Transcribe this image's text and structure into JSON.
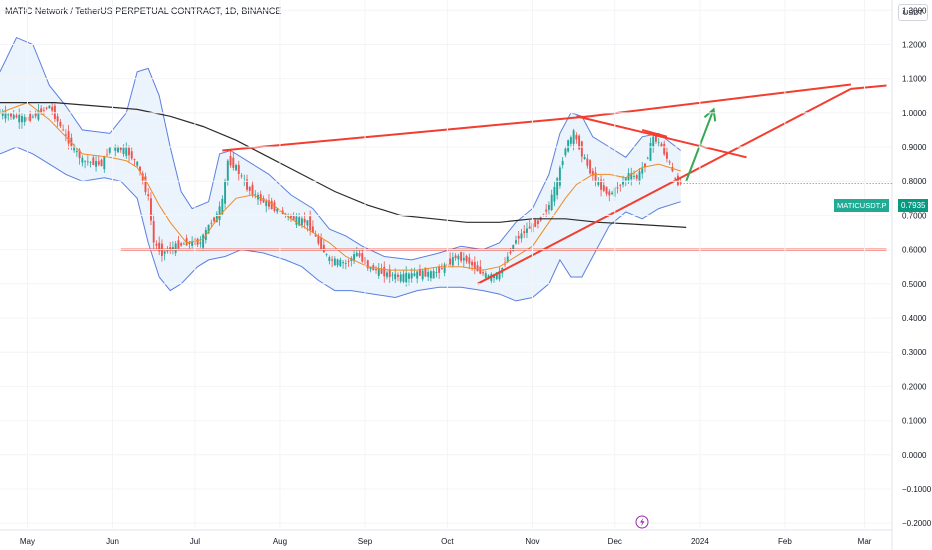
{
  "header": {
    "title": "MATIC Network / TetherUS PERPETUAL CONTRACT, 1D, BINANCE",
    "unit": "USDT"
  },
  "price_marker": {
    "symbol": "MATICUSDT.P",
    "value": "0.7935"
  },
  "colors": {
    "up": "#26a69a",
    "down": "#ef5350",
    "band": "#5b7fe0",
    "band_fill": "#e3f0fb",
    "sma": "#f08a24",
    "long_ma": "#2b2b2b",
    "pattern": "#f23d2f",
    "arrow": "#34a853"
  },
  "chart_data": {
    "type": "candlestick",
    "title": "MATIC Network / TetherUS PERPETUAL CONTRACT, 1D, BINANCE",
    "x_ticks": [
      "May",
      "Jun",
      "Jul",
      "Aug",
      "Sep",
      "Oct",
      "Nov",
      "Dec",
      "2024",
      "Feb",
      "Mar"
    ],
    "y_ticks": [
      "1.3000",
      "1.2000",
      "1.1000",
      "1.0000",
      "0.9000",
      "0.8000",
      "0.7000",
      "0.6000",
      "0.5000",
      "0.4000",
      "0.3000",
      "0.2000",
      "0.1000",
      "0.0000",
      "−0.1000",
      "−0.2000"
    ],
    "ylim": [
      -0.22,
      1.33
    ],
    "x_range_days": [
      -10,
      315
    ],
    "last_price": 0.7935,
    "price_path": [
      [
        -10,
        1.0
      ],
      [
        0,
        0.98
      ],
      [
        8,
        1.02
      ],
      [
        14,
        0.93
      ],
      [
        20,
        0.86
      ],
      [
        27,
        0.85
      ],
      [
        30,
        0.9
      ],
      [
        36,
        0.89
      ],
      [
        40,
        0.85
      ],
      [
        44,
        0.75
      ],
      [
        46,
        0.62
      ],
      [
        49,
        0.59
      ],
      [
        54,
        0.61
      ],
      [
        58,
        0.62
      ],
      [
        63,
        0.62
      ],
      [
        66,
        0.67
      ],
      [
        69,
        0.7
      ],
      [
        71,
        0.74
      ],
      [
        73,
        0.86
      ],
      [
        76,
        0.84
      ],
      [
        80,
        0.78
      ],
      [
        86,
        0.74
      ],
      [
        92,
        0.71
      ],
      [
        97,
        0.69
      ],
      [
        102,
        0.68
      ],
      [
        106,
        0.62
      ],
      [
        110,
        0.57
      ],
      [
        116,
        0.56
      ],
      [
        120,
        0.59
      ],
      [
        124,
        0.55
      ],
      [
        130,
        0.53
      ],
      [
        136,
        0.52
      ],
      [
        142,
        0.53
      ],
      [
        148,
        0.53
      ],
      [
        152,
        0.55
      ],
      [
        156,
        0.58
      ],
      [
        160,
        0.57
      ],
      [
        164,
        0.54
      ],
      [
        168,
        0.52
      ],
      [
        172,
        0.53
      ],
      [
        175,
        0.58
      ],
      [
        178,
        0.63
      ],
      [
        182,
        0.66
      ],
      [
        186,
        0.68
      ],
      [
        190,
        0.73
      ],
      [
        193,
        0.8
      ],
      [
        196,
        0.9
      ],
      [
        199,
        0.94
      ],
      [
        202,
        0.88
      ],
      [
        205,
        0.83
      ],
      [
        208,
        0.79
      ],
      [
        212,
        0.76
      ],
      [
        216,
        0.79
      ],
      [
        219,
        0.82
      ],
      [
        222,
        0.81
      ],
      [
        225,
        0.85
      ],
      [
        228,
        0.93
      ],
      [
        231,
        0.9
      ],
      [
        234,
        0.85
      ],
      [
        236,
        0.8
      ],
      [
        238,
        0.7935
      ]
    ],
    "bollinger_upper": [
      [
        -10,
        1.12
      ],
      [
        -4,
        1.22
      ],
      [
        2,
        1.2
      ],
      [
        8,
        1.08
      ],
      [
        14,
        1.02
      ],
      [
        20,
        0.95
      ],
      [
        30,
        0.94
      ],
      [
        36,
        1.0
      ],
      [
        40,
        1.12
      ],
      [
        44,
        1.13
      ],
      [
        48,
        1.05
      ],
      [
        52,
        0.9
      ],
      [
        56,
        0.77
      ],
      [
        60,
        0.72
      ],
      [
        66,
        0.74
      ],
      [
        70,
        0.88
      ],
      [
        74,
        0.89
      ],
      [
        80,
        0.86
      ],
      [
        88,
        0.82
      ],
      [
        96,
        0.76
      ],
      [
        104,
        0.72
      ],
      [
        110,
        0.66
      ],
      [
        116,
        0.64
      ],
      [
        122,
        0.61
      ],
      [
        130,
        0.58
      ],
      [
        140,
        0.57
      ],
      [
        150,
        0.59
      ],
      [
        158,
        0.61
      ],
      [
        166,
        0.6
      ],
      [
        172,
        0.62
      ],
      [
        178,
        0.68
      ],
      [
        184,
        0.72
      ],
      [
        190,
        0.82
      ],
      [
        194,
        0.94
      ],
      [
        198,
        1.0
      ],
      [
        202,
        0.99
      ],
      [
        206,
        0.93
      ],
      [
        212,
        0.9
      ],
      [
        218,
        0.87
      ],
      [
        224,
        0.93
      ],
      [
        230,
        0.94
      ],
      [
        238,
        0.89
      ]
    ],
    "bollinger_lower": [
      [
        -10,
        0.88
      ],
      [
        -4,
        0.9
      ],
      [
        2,
        0.88
      ],
      [
        8,
        0.85
      ],
      [
        14,
        0.82
      ],
      [
        20,
        0.8
      ],
      [
        28,
        0.81
      ],
      [
        34,
        0.8
      ],
      [
        40,
        0.75
      ],
      [
        44,
        0.62
      ],
      [
        48,
        0.52
      ],
      [
        52,
        0.48
      ],
      [
        56,
        0.5
      ],
      [
        62,
        0.55
      ],
      [
        66,
        0.57
      ],
      [
        72,
        0.58
      ],
      [
        78,
        0.6
      ],
      [
        86,
        0.59
      ],
      [
        94,
        0.57
      ],
      [
        100,
        0.55
      ],
      [
        106,
        0.51
      ],
      [
        112,
        0.48
      ],
      [
        118,
        0.48
      ],
      [
        126,
        0.47
      ],
      [
        134,
        0.46
      ],
      [
        142,
        0.48
      ],
      [
        150,
        0.49
      ],
      [
        158,
        0.49
      ],
      [
        166,
        0.48
      ],
      [
        172,
        0.47
      ],
      [
        178,
        0.45
      ],
      [
        184,
        0.46
      ],
      [
        190,
        0.5
      ],
      [
        194,
        0.57
      ],
      [
        198,
        0.52
      ],
      [
        202,
        0.52
      ],
      [
        206,
        0.58
      ],
      [
        212,
        0.67
      ],
      [
        218,
        0.71
      ],
      [
        224,
        0.69
      ],
      [
        230,
        0.72
      ],
      [
        238,
        0.74
      ]
    ],
    "sma_orange": [
      [
        -10,
        1.0
      ],
      [
        0,
        1.03
      ],
      [
        8,
        0.98
      ],
      [
        14,
        0.93
      ],
      [
        20,
        0.88
      ],
      [
        30,
        0.87
      ],
      [
        36,
        0.86
      ],
      [
        40,
        0.84
      ],
      [
        44,
        0.79
      ],
      [
        48,
        0.73
      ],
      [
        52,
        0.68
      ],
      [
        58,
        0.62
      ],
      [
        64,
        0.63
      ],
      [
        70,
        0.7
      ],
      [
        76,
        0.75
      ],
      [
        82,
        0.76
      ],
      [
        88,
        0.74
      ],
      [
        96,
        0.69
      ],
      [
        104,
        0.65
      ],
      [
        110,
        0.62
      ],
      [
        116,
        0.58
      ],
      [
        124,
        0.55
      ],
      [
        132,
        0.54
      ],
      [
        142,
        0.54
      ],
      [
        150,
        0.55
      ],
      [
        158,
        0.55
      ],
      [
        166,
        0.54
      ],
      [
        172,
        0.55
      ],
      [
        178,
        0.58
      ],
      [
        184,
        0.61
      ],
      [
        190,
        0.68
      ],
      [
        196,
        0.75
      ],
      [
        200,
        0.79
      ],
      [
        206,
        0.82
      ],
      [
        212,
        0.82
      ],
      [
        218,
        0.81
      ],
      [
        224,
        0.84
      ],
      [
        230,
        0.85
      ],
      [
        238,
        0.83
      ]
    ],
    "long_ma": [
      [
        -10,
        1.03
      ],
      [
        10,
        1.03
      ],
      [
        25,
        1.02
      ],
      [
        40,
        1.01
      ],
      [
        52,
        0.99
      ],
      [
        64,
        0.96
      ],
      [
        76,
        0.92
      ],
      [
        88,
        0.87
      ],
      [
        100,
        0.82
      ],
      [
        112,
        0.77
      ],
      [
        124,
        0.73
      ],
      [
        136,
        0.7
      ],
      [
        148,
        0.69
      ],
      [
        160,
        0.68
      ],
      [
        172,
        0.68
      ],
      [
        184,
        0.69
      ],
      [
        196,
        0.69
      ],
      [
        208,
        0.68
      ],
      [
        220,
        0.675
      ],
      [
        240,
        0.665
      ]
    ],
    "annotations": [
      {
        "type": "line",
        "from": [
          71,
          0.89
        ],
        "to": [
          205,
          0.99
        ]
      },
      {
        "type": "line",
        "from": [
          205,
          0.99
        ],
        "to": [
          300,
          1.083
        ]
      },
      {
        "type": "line",
        "from": [
          200,
          0.99
        ],
        "to": [
          262,
          0.87
        ]
      },
      {
        "type": "line",
        "from": [
          164,
          0.5
        ],
        "to": [
          300,
          1.07
        ]
      },
      {
        "type": "line",
        "from": [
          300,
          1.07
        ],
        "to": [
          313,
          1.08
        ]
      },
      {
        "type": "line",
        "from": [
          34,
          0.6
        ],
        "to": [
          313,
          0.6
        ]
      },
      {
        "type": "line",
        "from": [
          224,
          0.95
        ],
        "to": [
          233,
          0.93
        ]
      },
      {
        "type": "arrow",
        "from": [
          240,
          0.8
        ],
        "to": [
          250,
          1.01
        ]
      }
    ]
  }
}
